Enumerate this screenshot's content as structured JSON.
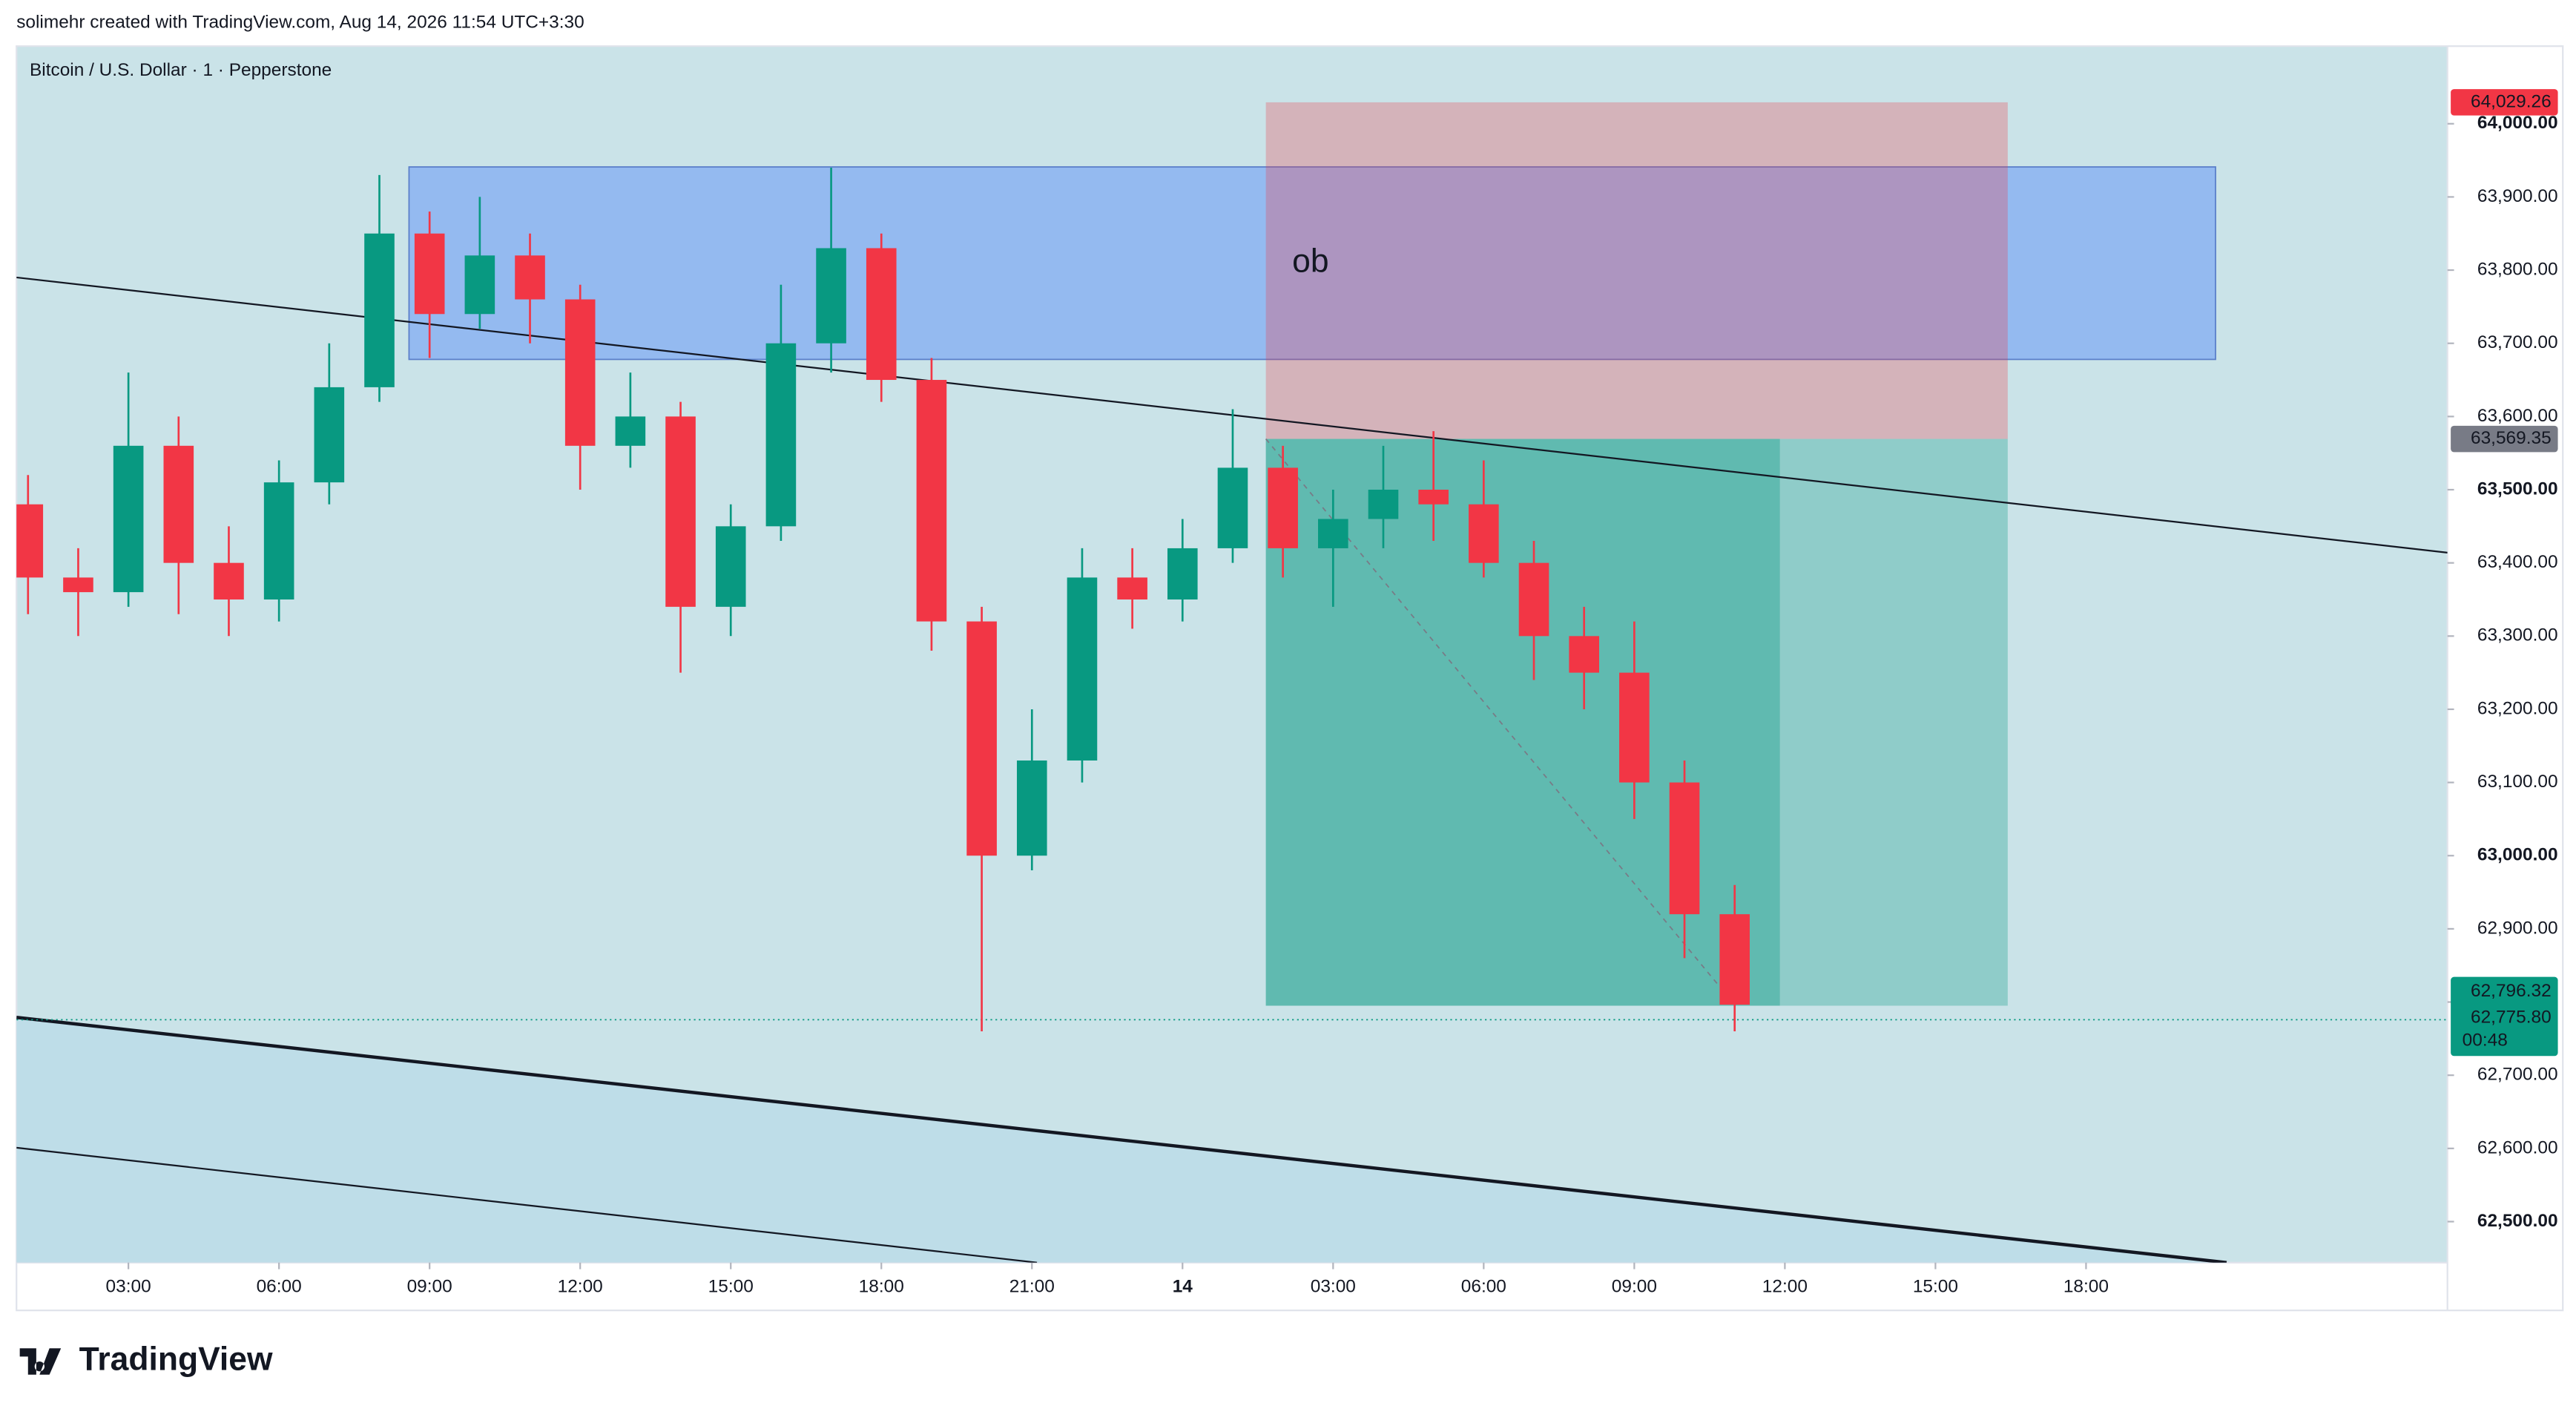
{
  "header": {
    "credit": "solimehr created with TradingView.com, Aug 14, 2026 11:54 UTC+3:30",
    "logo": "TradingView"
  },
  "chart_data": {
    "type": "candlestick",
    "title": "Bitcoin / U.S. Dollar · 1 · Pepperstone",
    "x": [
      1,
      2,
      3,
      4,
      5,
      6,
      7,
      8,
      9,
      10,
      11,
      12,
      13,
      14,
      15,
      16,
      17,
      18,
      19,
      20,
      21,
      22,
      23,
      24,
      25,
      26,
      27,
      28,
      29,
      30,
      31,
      32,
      33,
      34,
      35
    ],
    "open": [
      63480,
      63380,
      63360,
      63560,
      63400,
      63350,
      63510,
      63640,
      63850,
      63740,
      63820,
      63760,
      63560,
      63600,
      63340,
      63450,
      63700,
      63830,
      63650,
      63320,
      63000,
      63130,
      63380,
      63350,
      63420,
      63530,
      63420,
      63460,
      63500,
      63480,
      63400,
      63300,
      63250,
      63100,
      62920
    ],
    "high": [
      63520,
      63420,
      63660,
      63600,
      63450,
      63540,
      63700,
      63930,
      63880,
      63900,
      63850,
      63780,
      63660,
      63620,
      63480,
      63780,
      63940,
      63850,
      63680,
      63340,
      63200,
      63420,
      63420,
      63460,
      63610,
      63560,
      63500,
      63560,
      63580,
      63540,
      63430,
      63340,
      63320,
      63130,
      62960
    ],
    "low": [
      63330,
      63300,
      63340,
      63330,
      63300,
      63320,
      63480,
      63620,
      63680,
      63720,
      63700,
      63500,
      63530,
      63250,
      63300,
      63430,
      63660,
      63620,
      63280,
      62760,
      62980,
      63100,
      63310,
      63320,
      63400,
      63380,
      63340,
      63420,
      63430,
      63380,
      63240,
      63200,
      63050,
      62860,
      62760
    ],
    "close": [
      63380,
      63360,
      63560,
      63400,
      63350,
      63510,
      63640,
      63850,
      63740,
      63820,
      63760,
      63560,
      63600,
      63340,
      63450,
      63700,
      63830,
      63650,
      63320,
      63000,
      63130,
      63380,
      63350,
      63420,
      63530,
      63420,
      63460,
      63500,
      63480,
      63400,
      63300,
      63250,
      63100,
      62920,
      62796.32
    ],
    "up_color": "#089981",
    "down_color": "#f23645",
    "xlim": [
      0.77,
      49.2
    ],
    "ylim": [
      62444,
      64106
    ],
    "xticks": [
      {
        "value": 3,
        "label": "03:00"
      },
      {
        "value": 6,
        "label": "06:00"
      },
      {
        "value": 9,
        "label": "09:00"
      },
      {
        "value": 12,
        "label": "12:00"
      },
      {
        "value": 15,
        "label": "15:00"
      },
      {
        "value": 18,
        "label": "18:00"
      },
      {
        "value": 21,
        "label": "21:00"
      },
      {
        "value": 24,
        "label": "14"
      },
      {
        "value": 27,
        "label": "03:00"
      },
      {
        "value": 30,
        "label": "06:00"
      },
      {
        "value": 33,
        "label": "09:00"
      },
      {
        "value": 36,
        "label": "12:00"
      },
      {
        "value": 39,
        "label": "15:00"
      },
      {
        "value": 42,
        "label": "18:00"
      }
    ],
    "yticks": [
      {
        "value": 62500,
        "label": "62,500.00"
      },
      {
        "value": 62600,
        "label": "62,600.00"
      },
      {
        "value": 62700,
        "label": "62,700.00"
      },
      {
        "value": 62800,
        "label": "62,800.00"
      },
      {
        "value": 62900,
        "label": "62,900.00"
      },
      {
        "value": 63000,
        "label": "63,000.00"
      },
      {
        "value": 63100,
        "label": "63,100.00"
      },
      {
        "value": 63200,
        "label": "63,200.00"
      },
      {
        "value": 63300,
        "label": "63,300.00"
      },
      {
        "value": 63400,
        "label": "63,400.00"
      },
      {
        "value": 63500,
        "label": "63,500.00"
      },
      {
        "value": 63600,
        "label": "63,600.00"
      },
      {
        "value": 63700,
        "label": "63,700.00"
      },
      {
        "value": 63800,
        "label": "63,800.00"
      },
      {
        "value": 63900,
        "label": "63,900.00"
      },
      {
        "value": 64000,
        "label": "64,000.00"
      }
    ],
    "grid": false,
    "ob_box": {
      "label": "ob",
      "x": [
        8.59,
        44.58
      ],
      "y": [
        63678,
        63941
      ],
      "color": "#6f9ff5"
    },
    "position": {
      "x": [
        25.66,
        40.44
      ],
      "now": 35.9,
      "target": 62795,
      "stop_color": "#f23645",
      "target_color": "#089981"
    },
    "trendlines": [
      {
        "x": [
          0.77,
          49.2
        ],
        "y": [
          63790,
          63414
        ],
        "width": 1
      },
      {
        "x": [
          0.77,
          44.8
        ],
        "y": [
          62779,
          62444
        ],
        "width": 2
      },
      {
        "x": [
          0.77,
          21.1
        ],
        "y": [
          62601,
          62444
        ],
        "width": 1
      }
    ],
    "price_labels": [
      {
        "value": 64029.26,
        "label": "64,029.26",
        "color": "#f23645"
      },
      {
        "value": 63569.35,
        "label": "63,569.35",
        "color": "#787b86"
      }
    ],
    "last": {
      "value": 62775.8,
      "label": "62,775.80",
      "price_label": "62,796.32",
      "countdown": "00:48",
      "color": "#089981"
    }
  }
}
